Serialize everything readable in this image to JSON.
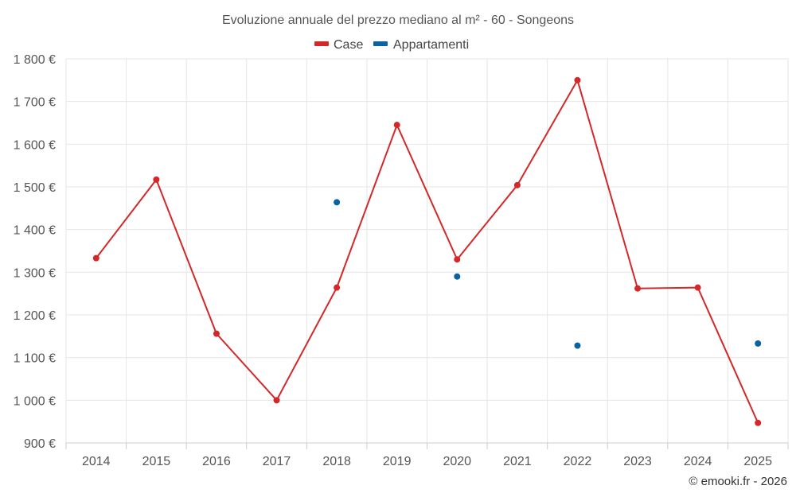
{
  "chart_data": {
    "type": "line",
    "title": "Evoluzione annuale del prezzo mediano al m² - 60 - Songeons",
    "xlabel": "",
    "ylabel": "",
    "categories": [
      "2014",
      "2015",
      "2016",
      "2017",
      "2018",
      "2019",
      "2020",
      "2021",
      "2022",
      "2023",
      "2024",
      "2025"
    ],
    "ylim": [
      900,
      1800
    ],
    "yticks": [
      900,
      1000,
      1100,
      1200,
      1300,
      1400,
      1500,
      1600,
      1700,
      1800
    ],
    "ytick_labels": [
      "900 €",
      "1 000 €",
      "1 100 €",
      "1 200 €",
      "1 300 €",
      "1 400 €",
      "1 500 €",
      "1 600 €",
      "1 700 €",
      "1 800 €"
    ],
    "grid": true,
    "legend_position": "top-center",
    "series": [
      {
        "name": "Case",
        "color": "#d62728",
        "style": "line-markers",
        "values": [
          1333,
          1517,
          1156,
          1000,
          1264,
          1645,
          1330,
          1504,
          1750,
          1262,
          1264,
          947
        ]
      },
      {
        "name": "Appartamenti",
        "color": "#0a62a0",
        "style": "markers",
        "values": [
          null,
          null,
          null,
          null,
          1464,
          null,
          1290,
          null,
          1128,
          null,
          null,
          1133
        ]
      }
    ]
  },
  "credit": "© emooki.fr - 2026"
}
